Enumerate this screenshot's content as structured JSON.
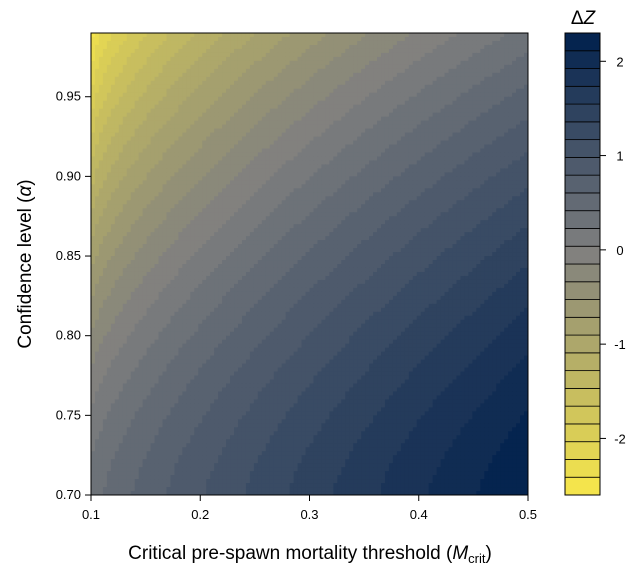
{
  "chart_data": {
    "type": "heatmap",
    "subtype": "filled-contour",
    "title": "",
    "xlabel": {
      "prefix": "Critical pre-spawn mortality threshold (",
      "symbol": "M",
      "subscript": "crit",
      "suffix": ")"
    },
    "ylabel": {
      "prefix": "Confidence level (",
      "symbol": "α",
      "suffix": ")"
    },
    "xlim": [
      0.1,
      0.5
    ],
    "ylim": [
      0.7,
      0.99
    ],
    "x_ticks": [
      0.1,
      0.2,
      0.3,
      0.4,
      0.5
    ],
    "x_tick_labels": [
      "0.1",
      "0.2",
      "0.3",
      "0.4",
      "0.5"
    ],
    "y_ticks": [
      0.7,
      0.75,
      0.8,
      0.85,
      0.9,
      0.95
    ],
    "y_tick_labels": [
      "0.70",
      "0.75",
      "0.80",
      "0.85",
      "0.90",
      "0.95"
    ],
    "colorbar": {
      "title_prefix": "Δ",
      "title_symbol": "Z",
      "range": [
        -2.6,
        2.3
      ],
      "ticks": [
        -2,
        -1,
        0,
        1,
        2
      ],
      "tick_labels": [
        "-2",
        "-1",
        "0",
        "1",
        "2"
      ],
      "n_levels": 26,
      "low_color": "#f8e84a",
      "mid_color": "#7f7f7f",
      "high_color": "#00204d"
    },
    "surface": {
      "corners": {
        "x0.1_y0.99": -2.6,
        "x0.1_y0.70": 0.3,
        "x0.5_y0.99": 0.3,
        "x0.5_y0.70": 2.3
      }
    },
    "grid": false,
    "legend": "colorbar-right"
  }
}
